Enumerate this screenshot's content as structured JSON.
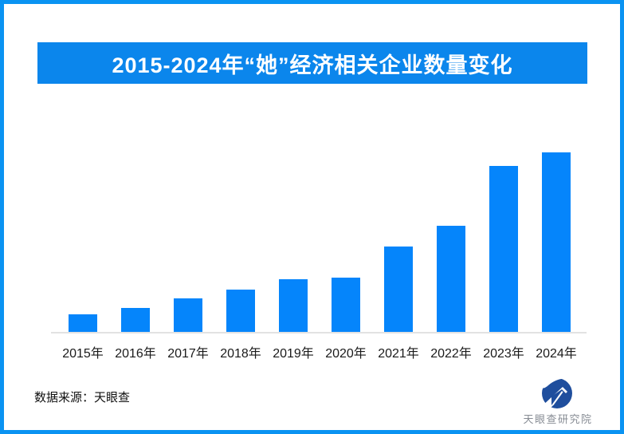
{
  "page": {
    "border_color": "#0a93f2",
    "background": "#ffffff"
  },
  "banner": {
    "title": "2015-2024年“她”经济相关企业数量变化",
    "background": "#0b86ec",
    "text_color": "#ffffff"
  },
  "chart_data": {
    "type": "bar",
    "title": "2015-2024年“她”经济相关企业数量变化",
    "categories": [
      "2015年",
      "2016年",
      "2017年",
      "2018年",
      "2019年",
      "2020年",
      "2021年",
      "2022年",
      "2023年",
      "2024年"
    ],
    "values": [
      22,
      30,
      42,
      53,
      66,
      68,
      107,
      133,
      208,
      225
    ],
    "value_unit": "relative bar height in px (chart shows no y-axis, gridlines or value labels)",
    "xlabel": "",
    "ylabel": "",
    "grid": false,
    "legend": false,
    "y_axis_visible": false,
    "bar_color": "#0585fb",
    "axis_line_color": "#e2e2e2",
    "tick_label_color": "#1a1a1a"
  },
  "footer": {
    "source_label": "数据来源：天眼查"
  },
  "brand": {
    "name": "天眼查研究院",
    "logo_icon": "tianyancha-eye-logo",
    "logo_color": "#1f4e9d",
    "text_color": "#878c94"
  }
}
